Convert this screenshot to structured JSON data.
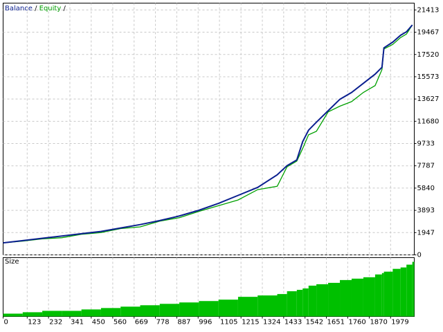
{
  "chart_data": {
    "type": "line",
    "legend": [
      "Balance",
      "/",
      "Equity",
      "/"
    ],
    "x": [
      0,
      100,
      200,
      300,
      400,
      500,
      600,
      700,
      800,
      900,
      1000,
      1100,
      1200,
      1300,
      1400,
      1450,
      1500,
      1530,
      1560,
      1600,
      1660,
      1720,
      1780,
      1840,
      1900,
      1935,
      1945,
      1990,
      2030,
      2060,
      2090
    ],
    "series": [
      {
        "name": "Equity",
        "color": "#00a000",
        "values": [
          1050,
          1200,
          1400,
          1500,
          1800,
          1950,
          2300,
          2450,
          2950,
          3250,
          3800,
          4300,
          4800,
          5700,
          6000,
          7700,
          8200,
          9300,
          10500,
          10800,
          12500,
          13000,
          13400,
          14200,
          14800,
          16200,
          18000,
          18400,
          19000,
          19300,
          20100
        ]
      },
      {
        "name": "Balance",
        "color": "#0a1f8f",
        "values": [
          1050,
          1250,
          1450,
          1650,
          1850,
          2050,
          2350,
          2650,
          3000,
          3400,
          3900,
          4500,
          5200,
          5900,
          7000,
          7800,
          8300,
          9900,
          10900,
          11600,
          12600,
          13600,
          14200,
          15000,
          15800,
          16400,
          18100,
          18600,
          19200,
          19500,
          20100
        ]
      }
    ],
    "ylim": [
      0,
      22010
    ],
    "yticks": [
      0,
      1947,
      3893,
      5840,
      7787,
      9733,
      11680,
      13627,
      15573,
      17520,
      19467,
      21413
    ],
    "xlim": [
      0,
      2100
    ],
    "xticks": [
      0,
      123,
      232,
      341,
      450,
      560,
      669,
      778,
      887,
      996,
      1105,
      1215,
      1324,
      1433,
      1542,
      1651,
      1760,
      1870,
      1979
    ],
    "grid": true,
    "size_panel": {
      "type": "area",
      "title": "Size",
      "color": "#00c000",
      "ylim": [
        0,
        2.1
      ],
      "values": [
        0.1,
        0.15,
        0.2,
        0.2,
        0.25,
        0.3,
        0.35,
        0.4,
        0.45,
        0.5,
        0.55,
        0.6,
        0.7,
        0.75,
        0.8,
        0.9,
        0.95,
        1.0,
        1.1,
        1.15,
        1.2,
        1.3,
        1.35,
        1.4,
        1.5,
        1.55,
        1.6,
        1.7,
        1.75,
        1.85,
        1.95
      ]
    }
  }
}
